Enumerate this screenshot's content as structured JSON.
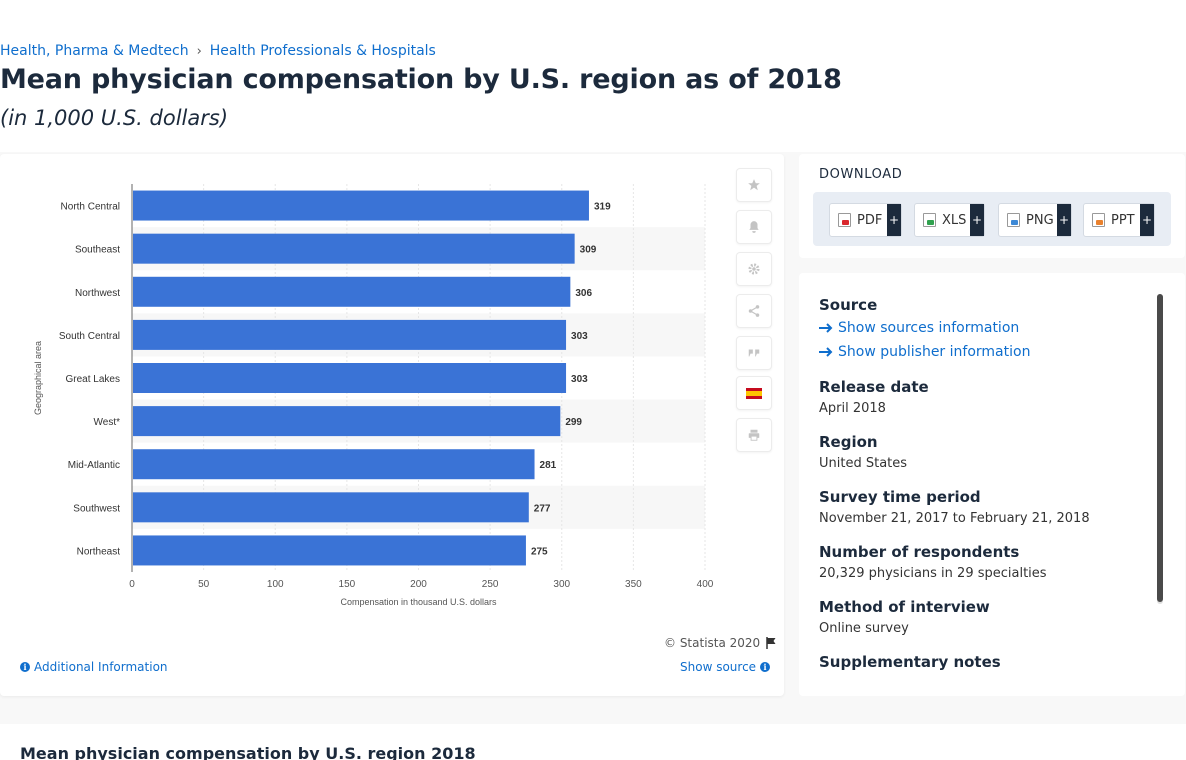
{
  "breadcrumb": {
    "items": [
      "Health, Pharma & Medtech",
      "Health Professionals & Hospitals"
    ],
    "separator": "›"
  },
  "page": {
    "title": "Mean physician compensation by U.S. region as of 2018",
    "subtitle": "(in 1,000 U.S. dollars)"
  },
  "chart_data": {
    "type": "bar",
    "orientation": "horizontal",
    "categories": [
      "North Central",
      "Southeast",
      "Northwest",
      "South Central",
      "Great Lakes",
      "West*",
      "Mid-Atlantic",
      "Southwest",
      "Northeast"
    ],
    "values": [
      319,
      309,
      306,
      303,
      303,
      299,
      281,
      277,
      275
    ],
    "xlabel": "Compensation in thousand U.S. dollars",
    "ylabel": "Geographical area",
    "xlim": [
      0,
      400
    ],
    "ticks": [
      0,
      50,
      100,
      150,
      200,
      250,
      300,
      350,
      400
    ],
    "bar_color": "#3a73d6",
    "grid": true
  },
  "chart_footer": {
    "copyright": "© Statista 2020",
    "additional_info": "Additional Information",
    "show_source": "Show source"
  },
  "side_tools": [
    "star-icon",
    "bell-icon",
    "gear-icon",
    "share-icon",
    "quote-icon",
    "flag-es-icon",
    "print-icon"
  ],
  "download": {
    "title": "DOWNLOAD",
    "buttons": [
      {
        "label": "PDF",
        "plus": "+"
      },
      {
        "label": "XLS",
        "plus": "+"
      },
      {
        "label": "PNG",
        "plus": "+"
      },
      {
        "label": "PPT",
        "plus": "+"
      }
    ]
  },
  "details": {
    "source_label": "Source",
    "show_sources": "Show sources information",
    "show_publisher": "Show publisher information",
    "release_label": "Release date",
    "release_value": "April 2018",
    "region_label": "Region",
    "region_value": "United States",
    "survey_label": "Survey time period",
    "survey_value": "November 21, 2017 to February 21, 2018",
    "respondents_label": "Number of respondents",
    "respondents_value": "20,329 physicians in 29 specialties",
    "method_label": "Method of interview",
    "method_value": "Online survey",
    "notes_label": "Supplementary notes"
  },
  "bottom": {
    "title": "Mean physician compensation by U.S. region 2018"
  }
}
